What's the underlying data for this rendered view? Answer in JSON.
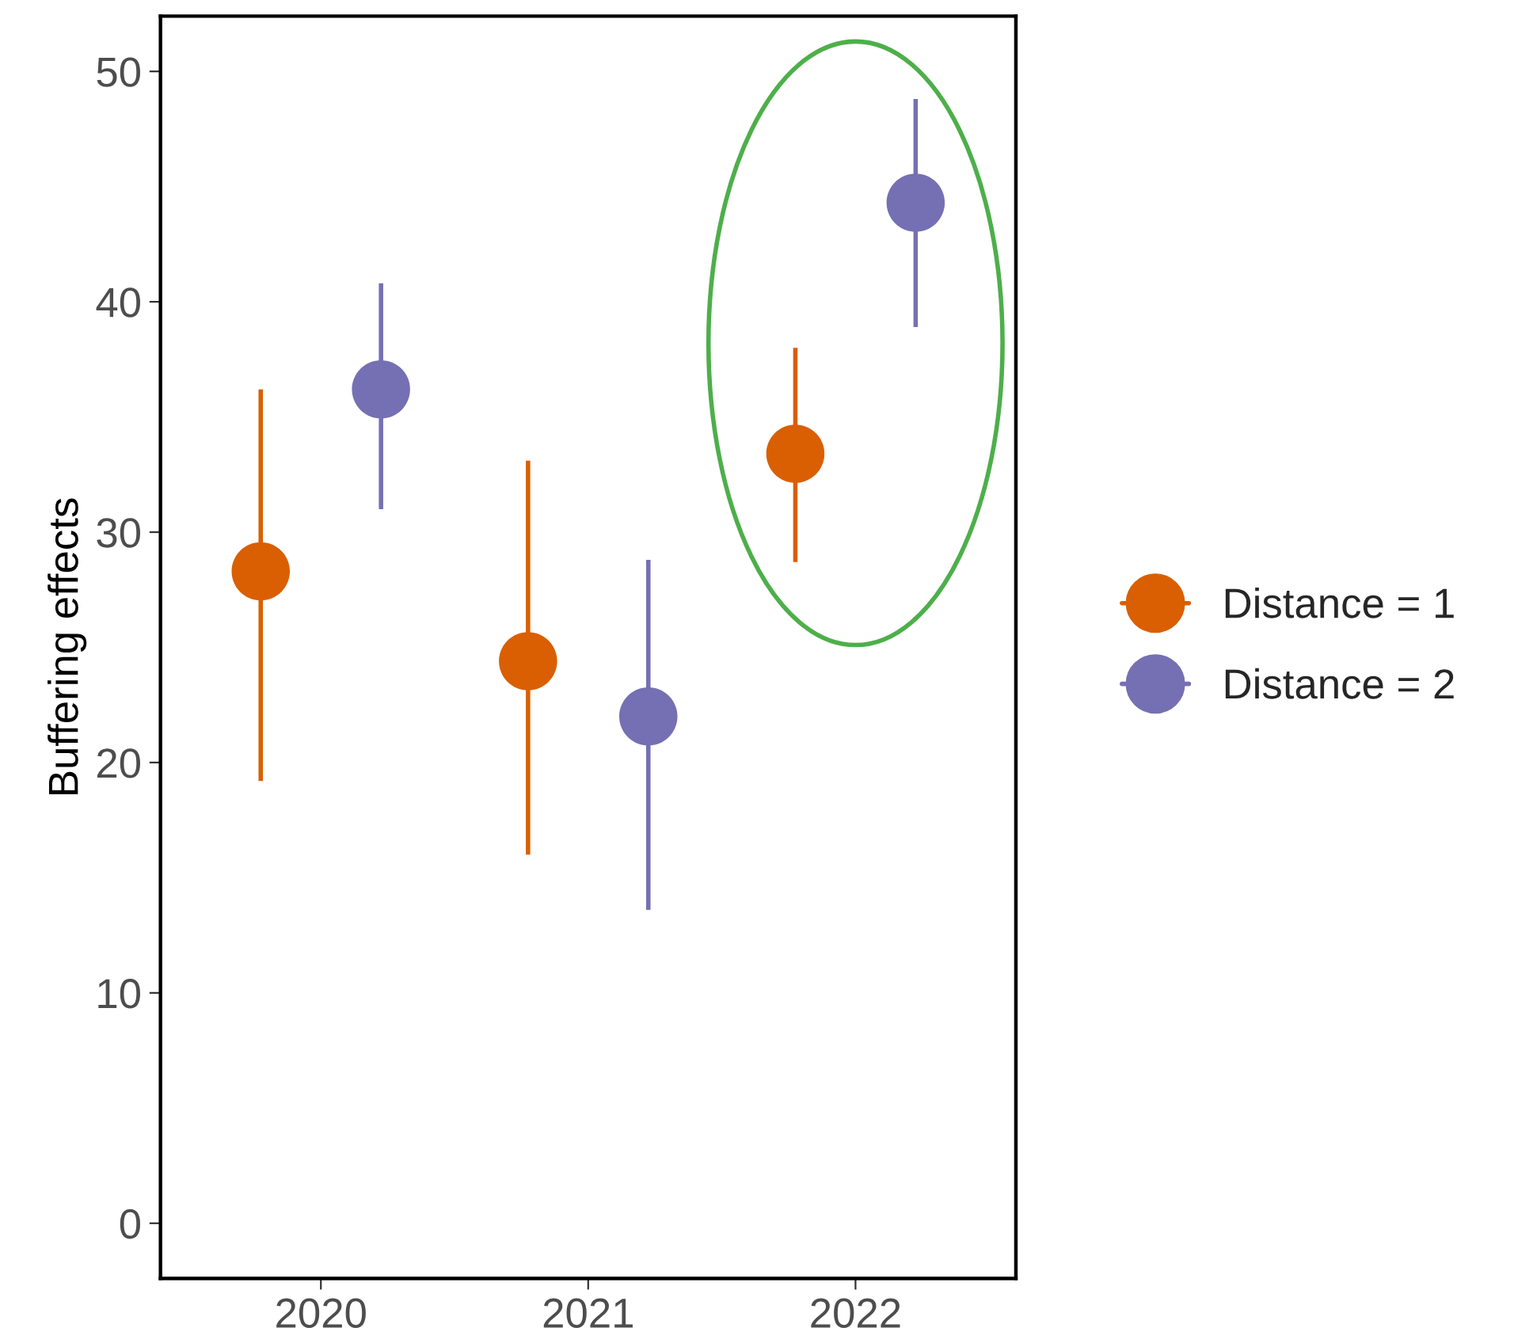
{
  "chart_data": {
    "type": "scatter",
    "ylabel": "Buffering effects",
    "categories": [
      "2020",
      "2021",
      "2022"
    ],
    "series": [
      {
        "name": "Distance = 1",
        "color": "#d95f02",
        "values": [
          28.3,
          24.4,
          33.4
        ],
        "errors": [
          [
            19.2,
            36.2
          ],
          [
            16.0,
            33.1
          ],
          [
            28.7,
            38.0
          ]
        ]
      },
      {
        "name": "Distance = 2",
        "color": "#7570b3",
        "values": [
          36.2,
          22.0,
          44.3
        ],
        "errors": [
          [
            31.0,
            40.8
          ],
          [
            13.6,
            28.8
          ],
          [
            38.9,
            48.8
          ]
        ]
      }
    ],
    "ylim": [
      -2.4,
      52.4
    ],
    "yticks": [
      0,
      10,
      20,
      30,
      40,
      50
    ],
    "grid": false,
    "legend": "right",
    "marker": "circle"
  }
}
